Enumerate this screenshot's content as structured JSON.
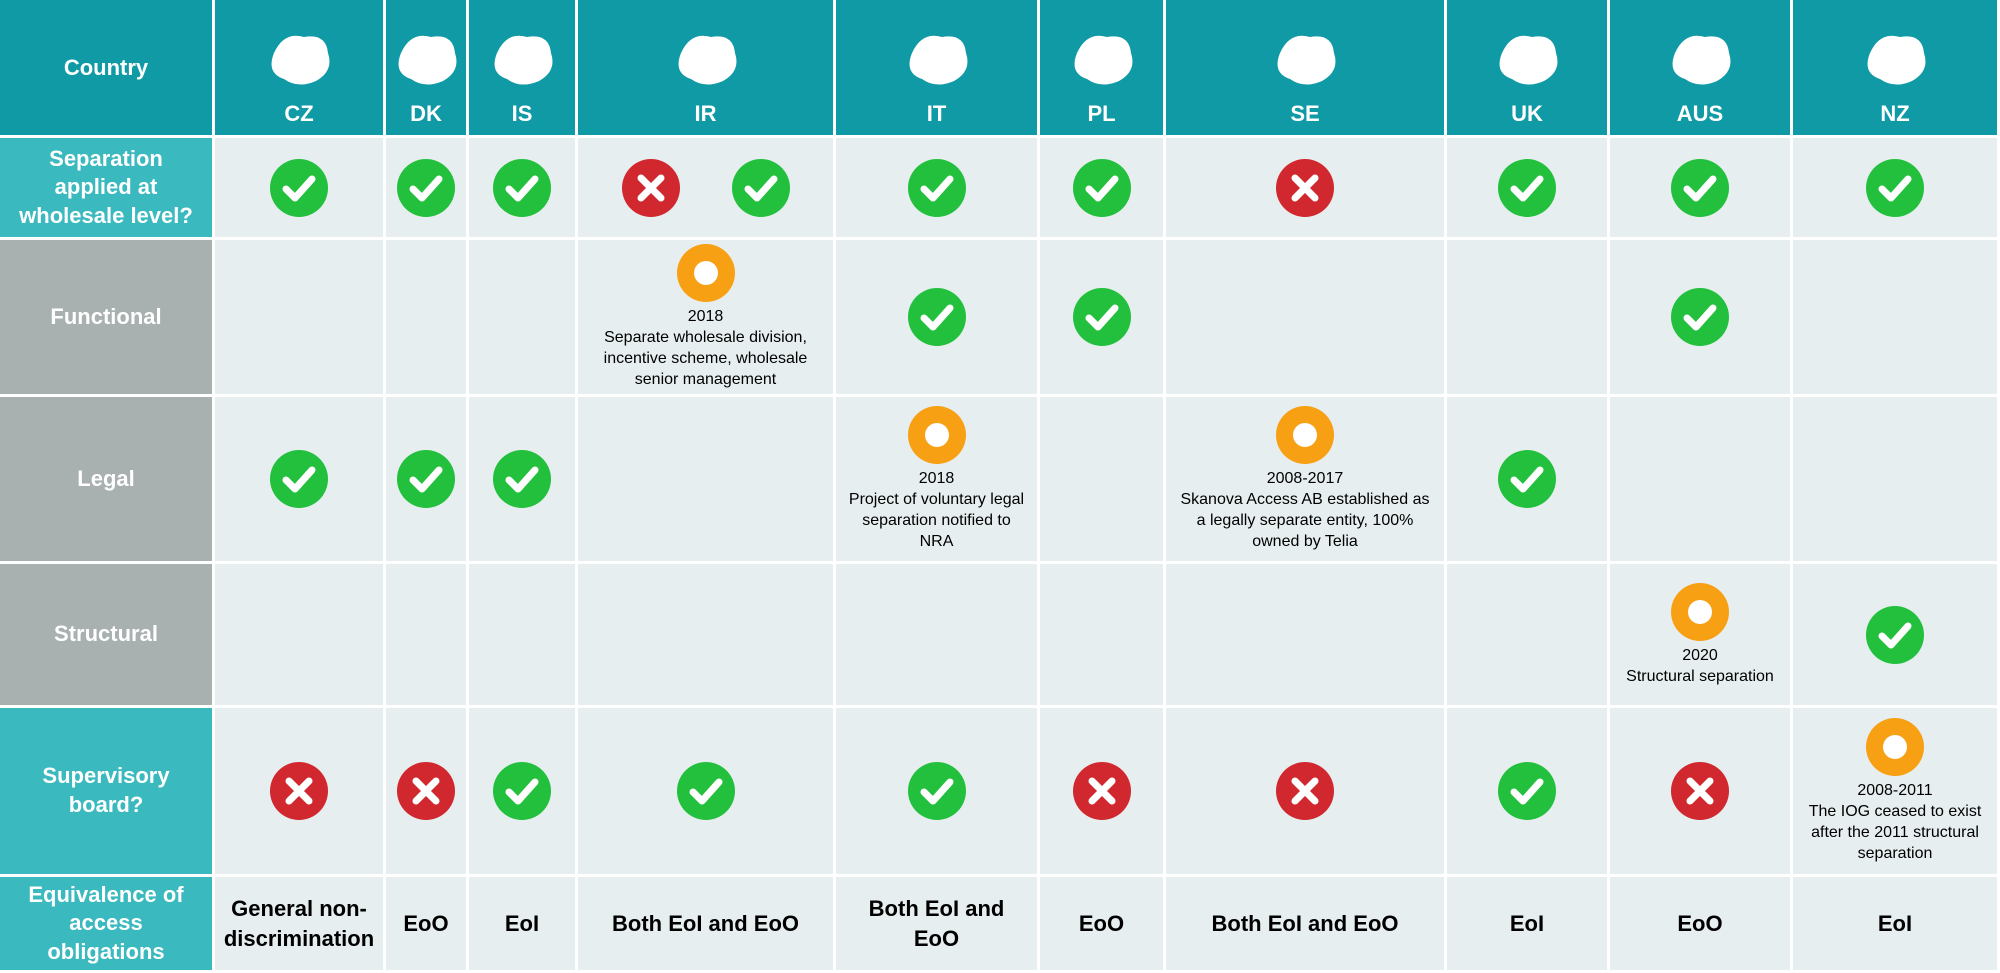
{
  "header": {
    "label": "Country",
    "countries": [
      "CZ",
      "DK",
      "IS",
      "IR",
      "IT",
      "PL",
      "SE",
      "UK",
      "AUS",
      "NZ"
    ]
  },
  "rows": [
    {
      "label": "Separation applied at wholesale level?",
      "cells": [
        null,
        null,
        null,
        null,
        null,
        null,
        null,
        null,
        null,
        null
      ]
    },
    {
      "label": "Functional",
      "cells": [
        null,
        null,
        null,
        {
          "year": "2018",
          "text": "Separate wholesale division, incentive scheme, wholesale senior management"
        },
        null,
        null,
        null,
        null,
        null,
        null
      ]
    },
    {
      "label": "Legal",
      "cells": [
        null,
        null,
        null,
        null,
        {
          "year": "2018",
          "text": "Project of voluntary legal separation notified to NRA"
        },
        null,
        {
          "year": "2008-2017",
          "text": "Skanova Access AB established as a legally separate entity, 100% owned by Telia"
        },
        null,
        null,
        null
      ]
    },
    {
      "label": "Structural",
      "cells": [
        null,
        null,
        null,
        null,
        null,
        null,
        null,
        null,
        {
          "year": "2020",
          "text": "Structural separation"
        },
        null
      ]
    },
    {
      "label": "Supervisory board?",
      "cells": [
        null,
        null,
        null,
        null,
        null,
        null,
        null,
        null,
        null,
        {
          "year": "2008-2011",
          "text": "The IOG ceased to exist after the 2011 structural separation"
        }
      ]
    },
    {
      "label": "Equivalence of access obligations",
      "cells": [
        "General non-discrimination",
        "EoO",
        "EoI",
        "Both EoI and EoO",
        "Both EoI and EoO",
        "EoO",
        "Both EoI and EoO",
        "EoI",
        "EoO",
        "EoI"
      ]
    }
  ]
}
